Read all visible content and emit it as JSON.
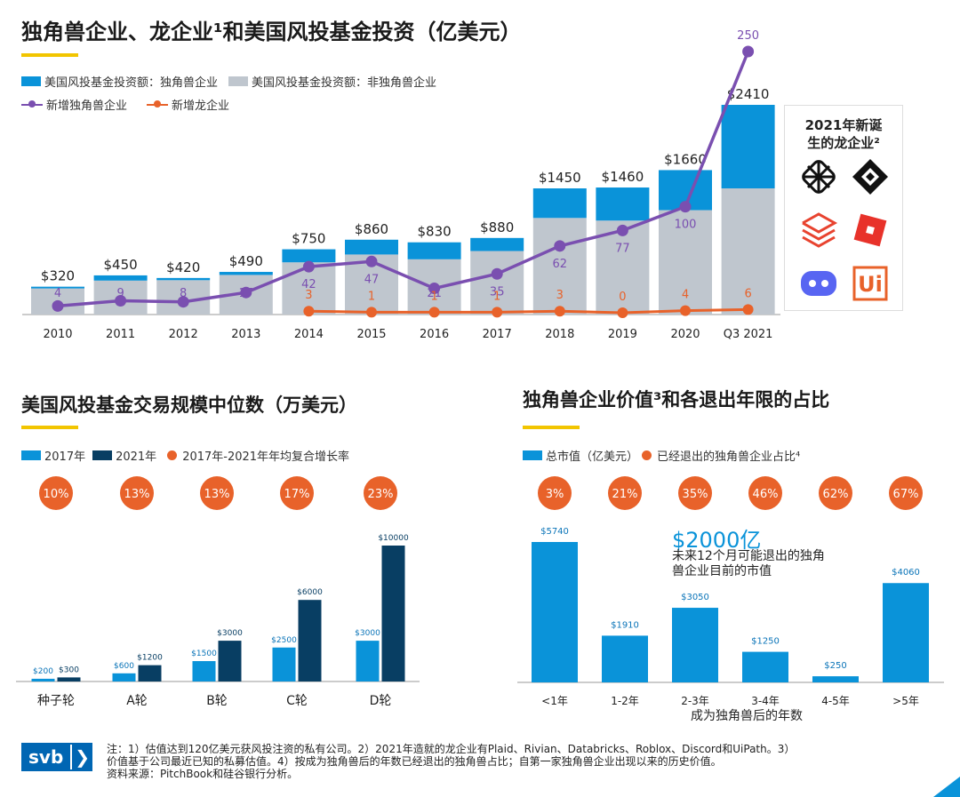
{
  "main": {
    "title": "独角兽企业、龙企业¹和美国风投基金投资（亿美元）",
    "legend": {
      "unicorn_vc": "美国风投基金投资额：独角兽企业",
      "non_unicorn_vc": "美国风投基金投资额：非独角兽企业",
      "new_unicorn": "新增独角兽企业",
      "new_dragon": "新增龙企业"
    },
    "dragon_box_title_1": "2021年新诞",
    "dragon_box_title_2": "生的龙企业²",
    "dragon_logos": [
      "plaid-logo",
      "rivian-logo",
      "databricks-logo",
      "roblox-logo",
      "discord-logo",
      "uipath-logo"
    ],
    "uipath_label": "Ui"
  },
  "chart_data": [
    {
      "type": "bar",
      "stacked": true,
      "title": "独角兽企业、龙企业¹和美国风投基金投资（亿美元）",
      "categories": [
        "2010",
        "2011",
        "2012",
        "2013",
        "2014",
        "2015",
        "2016",
        "2017",
        "2018",
        "2019",
        "2020",
        "Q3 2021"
      ],
      "totals": [
        320,
        450,
        420,
        490,
        750,
        860,
        830,
        880,
        1450,
        1460,
        1660,
        2410
      ],
      "total_labels": [
        "$320",
        "$450",
        "$420",
        "$490",
        "$750",
        "$860",
        "$830",
        "$880",
        "$1450",
        "$1460",
        "$1660",
        "$2410"
      ],
      "series": [
        {
          "name": "美国风投基金投资额：非独角兽企业",
          "values": [
            300,
            390,
            395,
            455,
            600,
            690,
            635,
            730,
            1110,
            1080,
            1200,
            1450
          ]
        },
        {
          "name": "美国风投基金投资额：独角兽企业",
          "values": [
            20,
            60,
            25,
            35,
            150,
            170,
            195,
            150,
            340,
            380,
            460,
            960
          ]
        }
      ],
      "lines": [
        {
          "name": "新增独角兽企业",
          "values": [
            4,
            9,
            8,
            17,
            42,
            47,
            21,
            35,
            62,
            77,
            100,
            250
          ],
          "labels": [
            "4",
            "9",
            "8",
            "17",
            "42",
            "47",
            "21",
            "35",
            "62",
            "77",
            "100",
            "250"
          ]
        },
        {
          "name": "新增龙企业",
          "values": [
            null,
            null,
            null,
            null,
            3,
            1,
            1,
            1,
            3,
            0,
            4,
            6
          ],
          "labels": [
            "",
            "",
            "",
            "",
            "3",
            "1",
            "1",
            "1",
            "3",
            "0",
            "4",
            "6"
          ]
        }
      ],
      "colors": {
        "unicorn": "#0a93d9",
        "non_unicorn": "#bfc6ce",
        "unicorn_line": "#7a4fb0",
        "dragon_line": "#e8622a"
      }
    },
    {
      "type": "bar",
      "title": "美国风投基金交易规模中位数（万美元）",
      "legend": [
        "2017年",
        "2021年",
        "2017年-2021年年均复合增长率"
      ],
      "categories": [
        "种子轮",
        "A轮",
        "B轮",
        "C轮",
        "D轮"
      ],
      "series": [
        {
          "name": "2017年",
          "values": [
            200,
            600,
            1500,
            2500,
            3000
          ],
          "labels": [
            "$200",
            "$600",
            "$1500",
            "$2500",
            "$3000"
          ]
        },
        {
          "name": "2021年",
          "values": [
            300,
            1200,
            3000,
            6000,
            10000
          ],
          "labels": [
            "$300",
            "$1200",
            "$3000",
            "$6000",
            "$10000"
          ]
        }
      ],
      "cagr": [
        "10%",
        "13%",
        "13%",
        "17%",
        "23%"
      ],
      "ylim": [
        0,
        10000
      ],
      "colors": {
        "y2017": "#0a93d9",
        "y2021": "#083e63",
        "cagr": "#e8622a"
      }
    },
    {
      "type": "bar",
      "title": "独角兽企业价值³和各退出年限的占比",
      "legend": [
        "总市值（亿美元）",
        "已经退出的独角兽企业占比⁴"
      ],
      "categories": [
        "<1年",
        "1-2年",
        "2-3年",
        "3-4年",
        "4-5年",
        ">5年"
      ],
      "xlabel": "成为独角兽后的年数",
      "values": [
        5740,
        1910,
        3050,
        1250,
        250,
        4060
      ],
      "labels": [
        "$5740",
        "$1910",
        "$3050",
        "$1250",
        "$250",
        "$4060"
      ],
      "exit_share": [
        "3%",
        "21%",
        "35%",
        "46%",
        "62%",
        "67%"
      ],
      "annotation_value": "$2000亿",
      "annotation_text_1": "未来12个月可能退出的独角",
      "annotation_text_2": "兽企业目前的市值",
      "ylim": [
        0,
        5740
      ],
      "colors": {
        "bar": "#0a93d9",
        "share": "#e8622a",
        "annotation": "#0a93d9"
      }
    }
  ],
  "footer": {
    "brand": "svb",
    "arrow": "❯",
    "note_1": "注：1）估值达到120亿美元获风投注资的私有公司。2）2021年造就的龙企业有Plaid、Rivian、Databricks、Roblox、Discord和UiPath。3）",
    "note_2": "价值基于公司最近已知的私募估值。4）按成为独角兽后的年数已经退出的独角兽占比；自第一家独角兽企业出现以来的历史价值。",
    "note_3": "资料来源：PitchBook和硅谷银行分析。"
  }
}
